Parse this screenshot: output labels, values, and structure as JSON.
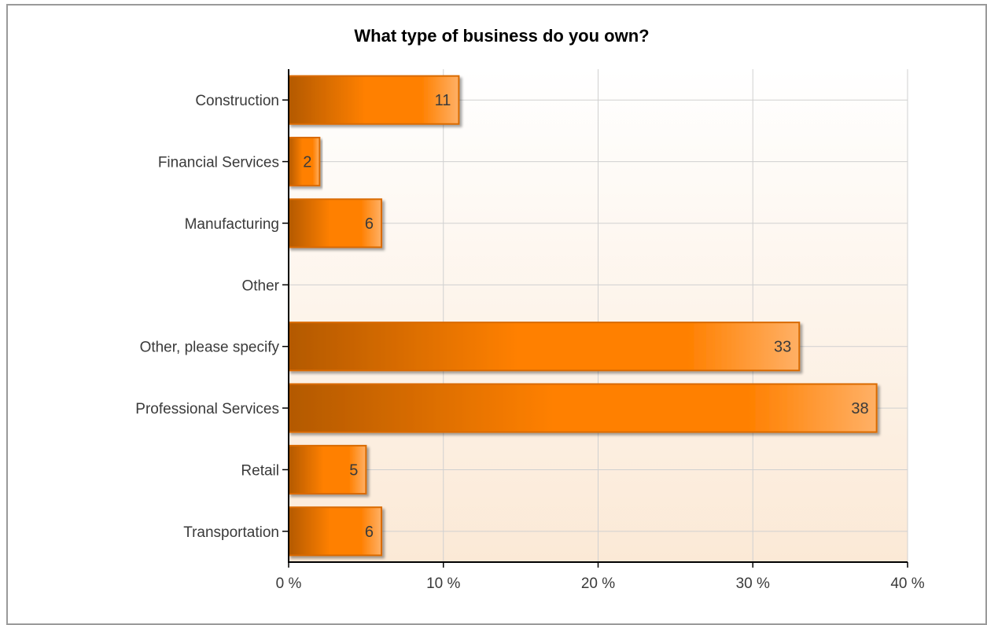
{
  "chart_data": {
    "type": "bar",
    "orientation": "horizontal",
    "title": "What type of business do you own?",
    "categories": [
      "Construction",
      "Financial Services",
      "Manufacturing",
      "Other",
      "Other, please specify",
      "Professional Services",
      "Retail",
      "Transportation"
    ],
    "values": [
      11,
      2,
      6,
      0,
      33,
      38,
      5,
      6
    ],
    "value_labels": [
      "11",
      "2",
      "6",
      "",
      "33",
      "38",
      "5",
      "6"
    ],
    "xlim": [
      0,
      40
    ],
    "xticks": [
      0,
      10,
      20,
      30,
      40
    ],
    "xtick_labels": [
      "0 %",
      "10 %",
      "20 %",
      "30 %",
      "40 %"
    ],
    "grid": true,
    "colors": {
      "bar_dark": "#b35900",
      "bar_mid": "#ff8000",
      "bar_light": "#ffb066",
      "bar_border": "#d96a00",
      "plot_bg_top": "#ffffff",
      "plot_bg_bottom": "#fbe9d6",
      "grid": "#d0d0d0",
      "axis": "#000000"
    }
  }
}
